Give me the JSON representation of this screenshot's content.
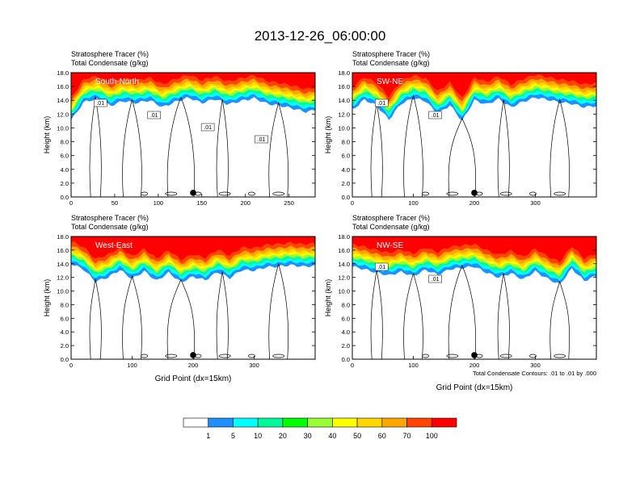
{
  "figure": {
    "title": "2013-12-26_06:00:00",
    "contour_note": "Total Condensate Contours: .01 to .01 by .000"
  },
  "colors": {
    "scale": [
      "#ffffff",
      "#1e90ff",
      "#00ffff",
      "#00fa9a",
      "#00ff00",
      "#9aff32",
      "#ffff00",
      "#ffd700",
      "#ffa500",
      "#ff4500",
      "#ff0000"
    ],
    "contour": "#000000",
    "label_text": "#ffffff"
  },
  "colorbar": {
    "labels": [
      "1",
      "5",
      "10",
      "20",
      "30",
      "40",
      "50",
      "60",
      "70",
      "100"
    ]
  },
  "chart_data": [
    {
      "type": "heatmap",
      "variable_1": "Stratosphere Tracer   (%)",
      "variable_2": "Total Condensate   (g/kg)",
      "label": "South-North",
      "ylabel": "Height (km)",
      "xlabel": "",
      "xlim": [
        0,
        280
      ],
      "ylim": [
        0,
        18
      ],
      "x_ticks": [
        "0",
        "50",
        "100",
        "150",
        "200",
        "250"
      ],
      "y_ticks": [
        "0.0",
        "2.0",
        "4.0",
        "6.0",
        "8.0",
        "10.0",
        "12.0",
        "14.0",
        "16.0",
        "18.0"
      ],
      "contour_labels": [
        ".01",
        ".01",
        ".01",
        ".01"
      ],
      "marker_x": 140,
      "tracer_front_km": [
        [
          0,
          12.5
        ],
        [
          15,
          15.2
        ],
        [
          30,
          15.6
        ],
        [
          45,
          14.6
        ],
        [
          60,
          15.3
        ],
        [
          75,
          15.0
        ],
        [
          90,
          15.4
        ],
        [
          105,
          14.4
        ],
        [
          120,
          15.2
        ],
        [
          135,
          15.8
        ],
        [
          150,
          15.0
        ],
        [
          165,
          15.6
        ],
        [
          180,
          14.8
        ],
        [
          195,
          15.3
        ],
        [
          210,
          15.7
        ],
        [
          225,
          14.9
        ],
        [
          240,
          14.6
        ],
        [
          255,
          14.2
        ],
        [
          270,
          13.7
        ],
        [
          280,
          14.0
        ]
      ]
    },
    {
      "type": "heatmap",
      "variable_1": "Stratosphere Tracer   (%)",
      "variable_2": "Total Condensate   (g/kg)",
      "label": "SW-NE",
      "ylabel": "Height (km)",
      "xlabel": "",
      "xlim": [
        0,
        400
      ],
      "ylim": [
        0,
        18
      ],
      "x_ticks": [
        "0",
        "100",
        "200",
        "300"
      ],
      "y_ticks": [
        "0.0",
        "2.0",
        "4.0",
        "6.0",
        "8.0",
        "10.0",
        "12.0",
        "14.0",
        "16.0",
        "18.0"
      ],
      "contour_labels": [
        ".01",
        ".01"
      ],
      "marker_x": 200,
      "tracer_front_km": [
        [
          0,
          14.0
        ],
        [
          20,
          15.5
        ],
        [
          40,
          14.6
        ],
        [
          60,
          12.6
        ],
        [
          80,
          14.9
        ],
        [
          100,
          15.7
        ],
        [
          120,
          15.3
        ],
        [
          140,
          13.4
        ],
        [
          160,
          14.7
        ],
        [
          180,
          12.4
        ],
        [
          200,
          15.4
        ],
        [
          220,
          14.8
        ],
        [
          240,
          15.6
        ],
        [
          260,
          14.4
        ],
        [
          280,
          15.2
        ],
        [
          300,
          15.8
        ],
        [
          320,
          15.5
        ],
        [
          340,
          15.1
        ],
        [
          360,
          14.9
        ],
        [
          380,
          14.4
        ],
        [
          400,
          14.6
        ]
      ]
    },
    {
      "type": "heatmap",
      "variable_1": "Stratosphere Tracer   (%)",
      "variable_2": "Total Condensate   (g/kg)",
      "label": "West-East",
      "ylabel": "Height (km)",
      "xlabel": "Grid Point (dx=15km)",
      "xlim": [
        0,
        400
      ],
      "ylim": [
        0,
        18
      ],
      "x_ticks": [
        "0",
        "100",
        "200",
        "300"
      ],
      "y_ticks": [
        "0.0",
        "2.0",
        "4.0",
        "6.0",
        "8.0",
        "10.0",
        "12.0",
        "14.0",
        "16.0",
        "18.0"
      ],
      "contour_labels": [],
      "marker_x": 200,
      "tracer_front_km": [
        [
          0,
          15.4
        ],
        [
          20,
          14.6
        ],
        [
          40,
          12.8
        ],
        [
          60,
          13.4
        ],
        [
          80,
          14.5
        ],
        [
          100,
          13.2
        ],
        [
          120,
          14.3
        ],
        [
          140,
          12.9
        ],
        [
          160,
          14.1
        ],
        [
          180,
          12.7
        ],
        [
          200,
          13.5
        ],
        [
          220,
          13.0
        ],
        [
          240,
          14.2
        ],
        [
          260,
          13.3
        ],
        [
          280,
          14.5
        ],
        [
          300,
          14.4
        ],
        [
          320,
          14.9
        ],
        [
          340,
          15.0
        ],
        [
          360,
          15.2
        ],
        [
          380,
          15.0
        ],
        [
          400,
          15.1
        ]
      ]
    },
    {
      "type": "heatmap",
      "variable_1": "Stratosphere Tracer   (%)",
      "variable_2": "Total Condensate   (g/kg)",
      "label": "NW-SE",
      "ylabel": "Height (km)",
      "xlabel": "Grid Point (dx=15km)",
      "xlim": [
        0,
        400
      ],
      "ylim": [
        0,
        18
      ],
      "x_ticks": [
        "0",
        "100",
        "200",
        "300"
      ],
      "y_ticks": [
        "0.0",
        "2.0",
        "4.0",
        "6.0",
        "8.0",
        "10.0",
        "12.0",
        "14.0",
        "16.0",
        "18.0"
      ],
      "contour_labels": [
        ".01",
        ".01"
      ],
      "marker_x": 200,
      "tracer_front_km": [
        [
          0,
          15.0
        ],
        [
          20,
          14.6
        ],
        [
          40,
          14.1
        ],
        [
          60,
          13.7
        ],
        [
          80,
          14.2
        ],
        [
          100,
          13.6
        ],
        [
          120,
          14.5
        ],
        [
          140,
          13.8
        ],
        [
          160,
          14.6
        ],
        [
          180,
          14.8
        ],
        [
          200,
          15.0
        ],
        [
          220,
          14.1
        ],
        [
          240,
          13.4
        ],
        [
          260,
          14.0
        ],
        [
          280,
          13.1
        ],
        [
          300,
          14.3
        ],
        [
          320,
          13.2
        ],
        [
          340,
          12.4
        ],
        [
          360,
          14.7
        ],
        [
          380,
          12.9
        ],
        [
          400,
          13.6
        ]
      ]
    }
  ]
}
